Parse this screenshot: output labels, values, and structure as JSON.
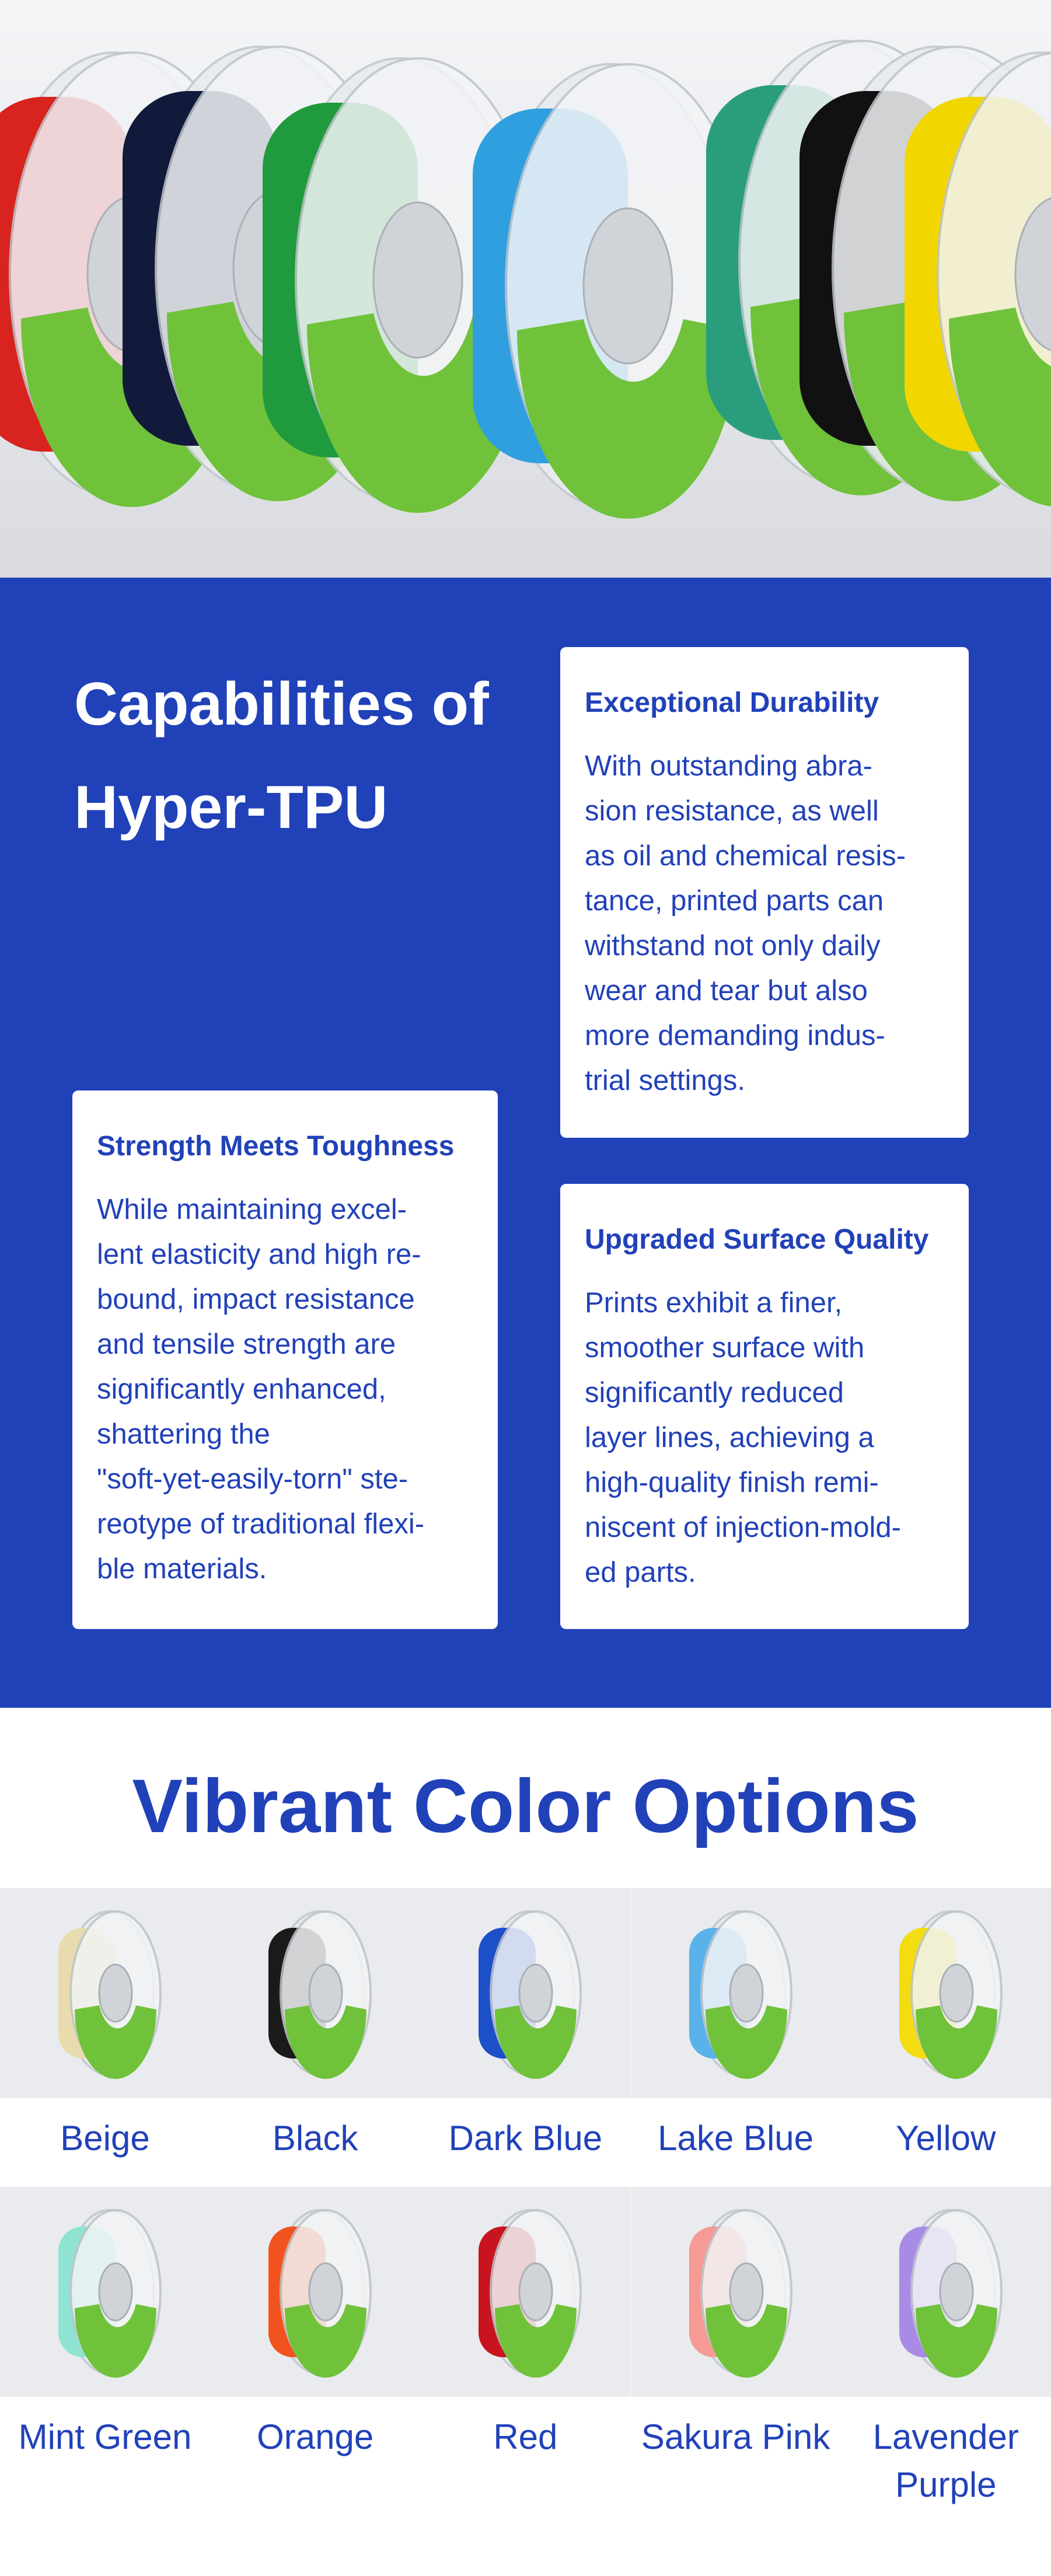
{
  "capabilities": {
    "title_line1": "Capabilities of",
    "title_line2": "Hyper-TPU",
    "cards": [
      {
        "title": "Exceptional Durability",
        "lines": [
          "With outstanding abra-",
          "sion resistance, as well",
          "as oil and chemical resis-",
          "tance, printed parts can",
          "withstand not only daily",
          "wear and tear but also",
          "more demanding indus-",
          "trial settings."
        ]
      },
      {
        "title": "Strength Meets Toughness",
        "lines": [
          "While maintaining excel-",
          "lent elasticity and high re-",
          "bound, impact resistance",
          "and tensile strength are",
          "significantly enhanced,",
          "shattering the",
          "\"soft-yet-easily-torn\" ste-",
          "reotype of traditional flexi-",
          "ble materials."
        ]
      },
      {
        "title": "Upgraded Surface Quality",
        "lines": [
          "Prints exhibit a finer,",
          "smoother surface with",
          "significantly reduced",
          "layer lines, achieving a",
          "high-quality finish remi-",
          "niscent of injection-mold-",
          "ed parts."
        ]
      }
    ]
  },
  "colors": {
    "title": "Vibrant Color Options",
    "options": [
      "Beige",
      "Black",
      "Dark Blue",
      "Lake Blue",
      "Yellow",
      "Mint Green",
      "Orange",
      "Red",
      "Sakura Pink",
      "Lavender Purple"
    ]
  }
}
